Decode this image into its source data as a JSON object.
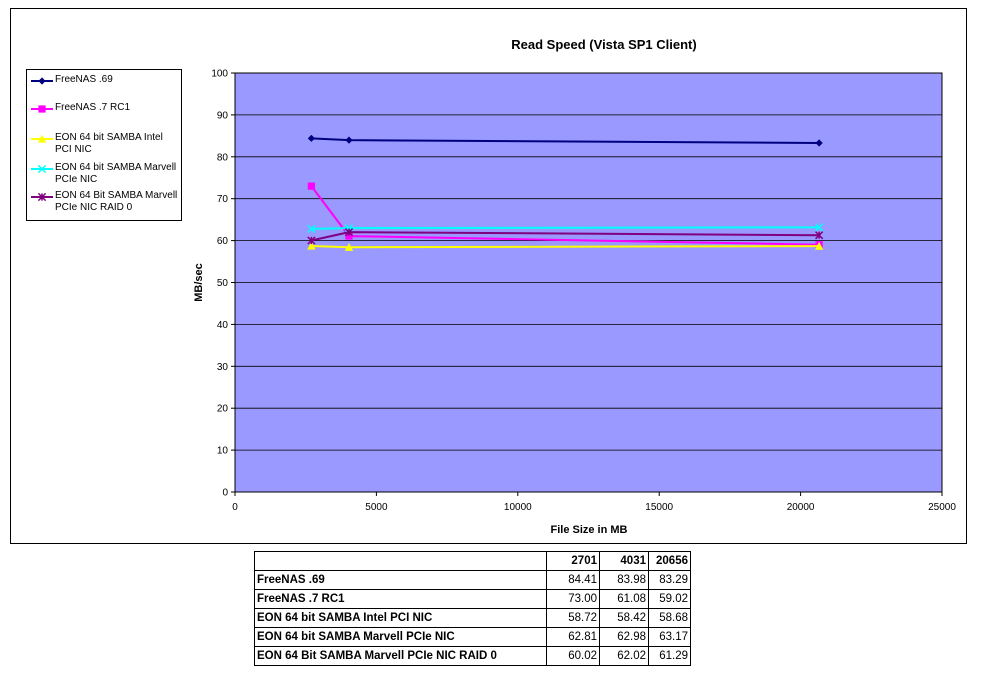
{
  "chart_data": {
    "type": "scatter",
    "title": "Read Speed (Vista SP1 Client)",
    "xlabel": "File Size in MB",
    "ylabel": "MB/sec",
    "xlim": [
      0,
      25000
    ],
    "ylim": [
      0,
      100
    ],
    "xticks": [
      0,
      5000,
      10000,
      15000,
      20000,
      25000
    ],
    "yticks": [
      0,
      10,
      20,
      30,
      40,
      50,
      60,
      70,
      80,
      90,
      100
    ],
    "grid": true,
    "legend_position": "left",
    "plot_background": "#9999ff",
    "series": [
      {
        "name": "FreeNAS .69",
        "color": "#000080",
        "marker": "diamond",
        "x": [
          2701,
          4031,
          20656
        ],
        "y": [
          84.41,
          83.98,
          83.29
        ]
      },
      {
        "name": "FreeNAS .7 RC1",
        "color": "#ff00ff",
        "marker": "square",
        "x": [
          2701,
          4031,
          20656
        ],
        "y": [
          73.0,
          61.08,
          59.02
        ]
      },
      {
        "name": "EON 64 bit SAMBA Intel PCI NIC",
        "color": "#ffff00",
        "marker": "triangle",
        "x": [
          2701,
          4031,
          20656
        ],
        "y": [
          58.72,
          58.42,
          58.68
        ]
      },
      {
        "name": "EON 64 bit SAMBA Marvell PCIe NIC",
        "color": "#00ffff",
        "marker": "x",
        "x": [
          2701,
          4031,
          20656
        ],
        "y": [
          62.81,
          62.98,
          63.17
        ]
      },
      {
        "name": "EON 64 Bit SAMBA Marvell PCIe NIC RAID 0",
        "color": "#800080",
        "marker": "star",
        "x": [
          2701,
          4031,
          20656
        ],
        "y": [
          60.02,
          62.02,
          61.29
        ]
      }
    ]
  },
  "table": {
    "headers": [
      "2701",
      "4031",
      "20656"
    ],
    "rows": [
      {
        "label": "FreeNAS .69",
        "values": [
          "84.41",
          "83.98",
          "83.29"
        ]
      },
      {
        "label": "FreeNAS .7 RC1",
        "values": [
          "73.00",
          "61.08",
          "59.02"
        ]
      },
      {
        "label": "EON 64 bit SAMBA Intel PCI NIC",
        "values": [
          "58.72",
          "58.42",
          "58.68"
        ]
      },
      {
        "label": "EON 64 bit SAMBA Marvell PCIe NIC",
        "values": [
          "62.81",
          "62.98",
          "63.17"
        ]
      },
      {
        "label": "EON 64 Bit SAMBA Marvell PCIe NIC RAID 0",
        "values": [
          "60.02",
          "62.02",
          "61.29"
        ]
      }
    ]
  }
}
